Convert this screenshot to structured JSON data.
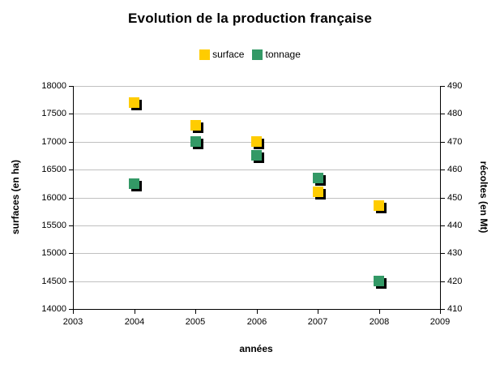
{
  "chart_data": {
    "type": "scatter",
    "title": "Evolution de la production française",
    "xlabel": "années",
    "ylabel_left": "surfaces (en ha)",
    "ylabel_right": "récoltes (en Mt)",
    "x": [
      2004,
      2005,
      2006,
      2007,
      2008
    ],
    "series": [
      {
        "name": "surface",
        "axis": "left",
        "color": "#FFCC00",
        "values": [
          17700,
          17300,
          17000,
          16100,
          15850
        ]
      },
      {
        "name": "tonnage",
        "axis": "right",
        "color": "#339966",
        "values": [
          455,
          470,
          465,
          457,
          420
        ]
      }
    ],
    "xlim": [
      2003,
      2009
    ],
    "xticks": [
      2003,
      2004,
      2005,
      2006,
      2007,
      2008,
      2009
    ],
    "ylim_left": [
      14000,
      18000
    ],
    "yticks_left": [
      14000,
      14500,
      15000,
      15500,
      16000,
      16500,
      17000,
      17500,
      18000
    ],
    "ylim_right": [
      410,
      490
    ],
    "yticks_right": [
      410,
      420,
      430,
      440,
      450,
      460,
      470,
      480,
      490
    ],
    "grid": true,
    "legend_position": "top",
    "marker": "square",
    "marker_shadow": true
  },
  "colors": {
    "background": "#FFFFFF",
    "gridline": "#C0C0C0",
    "axis": "#000000",
    "text": "#000000",
    "shadow": "#000000"
  }
}
